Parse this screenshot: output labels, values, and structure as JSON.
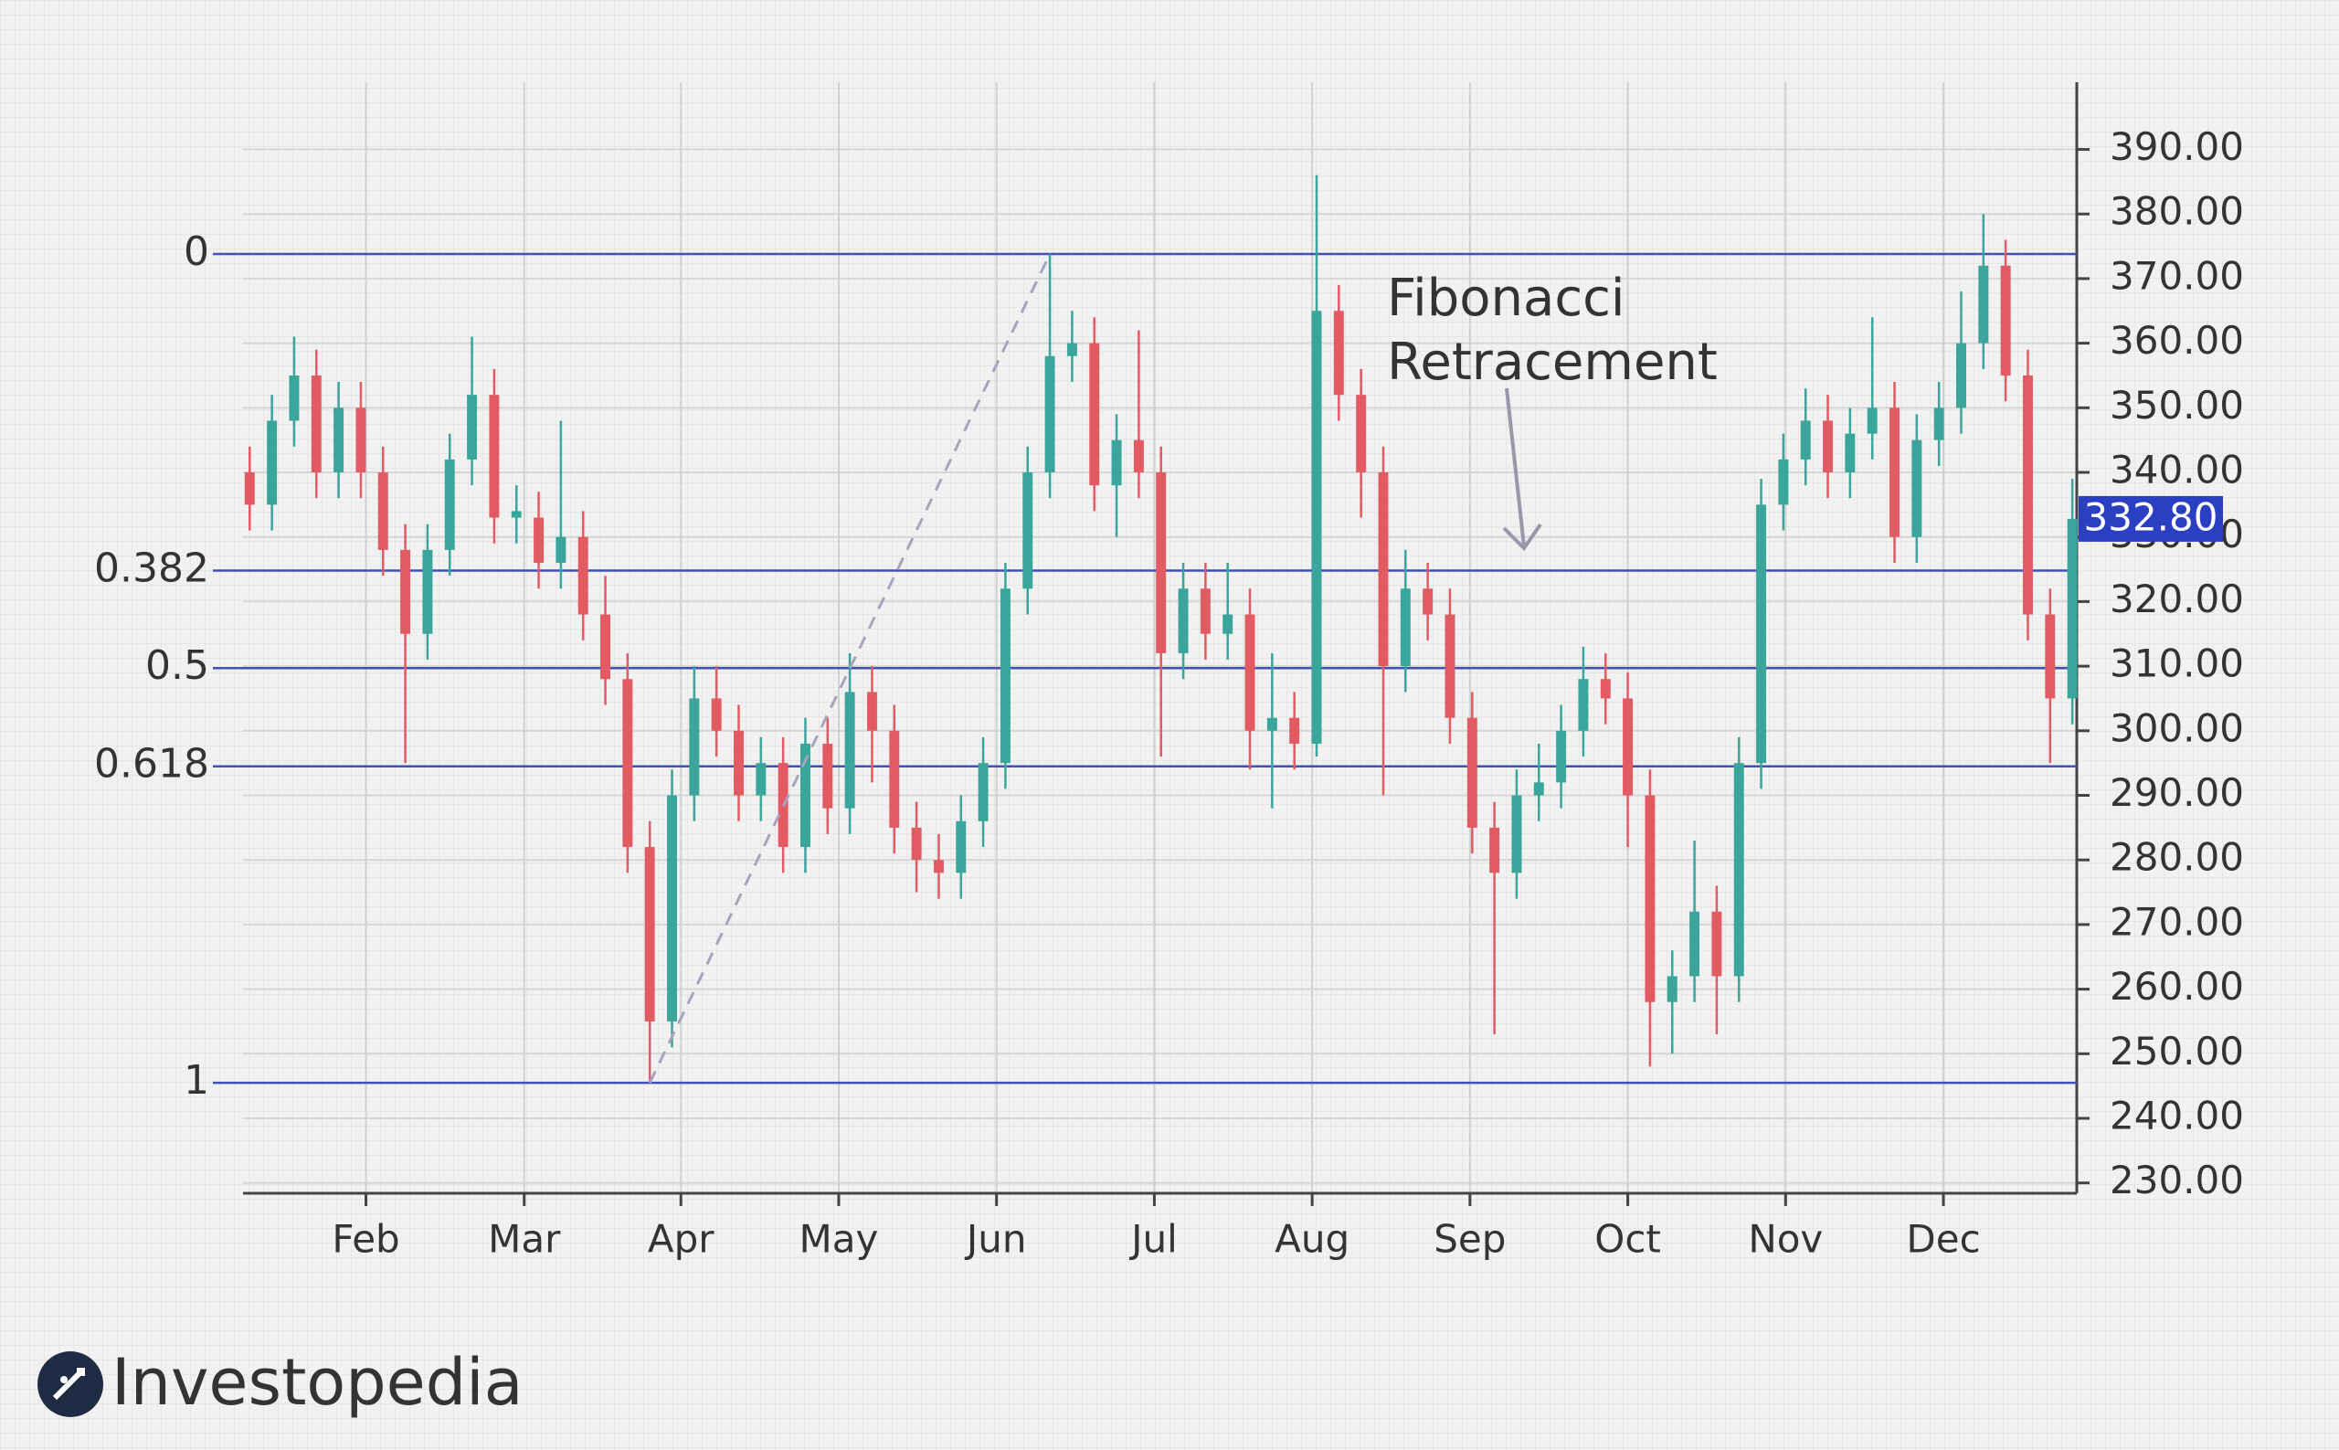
{
  "chart_data": {
    "type": "candlestick",
    "annotation": [
      "Fibonacci",
      "Retracement"
    ],
    "up_color": "#3aa59a",
    "down_color": "#e25a62",
    "fib_color": "#3f51b5",
    "grid": true,
    "xlim": [
      -0.3,
      82.2
    ],
    "xticks": [
      {
        "value": 5.23,
        "label": "Feb"
      },
      {
        "value": 12.35,
        "label": "Mar"
      },
      {
        "value": 19.4,
        "label": "Apr"
      },
      {
        "value": 26.5,
        "label": "May"
      },
      {
        "value": 33.6,
        "label": "Jun"
      },
      {
        "value": 40.7,
        "label": "Jul"
      },
      {
        "value": 47.8,
        "label": "Aug"
      },
      {
        "value": 54.9,
        "label": "Sep"
      },
      {
        "value": 62.0,
        "label": "Oct"
      },
      {
        "value": 69.1,
        "label": "Nov"
      },
      {
        "value": 76.2,
        "label": "Dec"
      }
    ],
    "ylim": [
      228.4,
      400.4
    ],
    "yticks": [
      {
        "value": 230,
        "label": "230.00"
      },
      {
        "value": 240,
        "label": "240.00"
      },
      {
        "value": 250,
        "label": "250.00"
      },
      {
        "value": 260,
        "label": "260.00"
      },
      {
        "value": 270,
        "label": "270.00"
      },
      {
        "value": 280,
        "label": "280.00"
      },
      {
        "value": 290,
        "label": "290.00"
      },
      {
        "value": 300,
        "label": "300.00"
      },
      {
        "value": 310,
        "label": "310.00"
      },
      {
        "value": 320,
        "label": "320.00"
      },
      {
        "value": 330,
        "label": "330.00"
      },
      {
        "value": 340,
        "label": "340.00"
      },
      {
        "value": 350,
        "label": "350.00"
      },
      {
        "value": 360,
        "label": "360.00"
      },
      {
        "value": 370,
        "label": "370.00"
      },
      {
        "value": 380,
        "label": "380.00"
      },
      {
        "value": 390,
        "label": "390.00"
      }
    ],
    "fib_levels": [
      {
        "ratio": 0,
        "price": 373.8
      },
      {
        "ratio": 0.382,
        "price": 324.8
      },
      {
        "ratio": 0.5,
        "price": 309.7
      },
      {
        "ratio": 0.618,
        "price": 294.5
      },
      {
        "ratio": 1,
        "price": 245.5
      }
    ],
    "last_price": {
      "value": 332.8,
      "label": "332.80"
    },
    "open": [
      340,
      335,
      348,
      355,
      340,
      350,
      340,
      328,
      315,
      328,
      342,
      352,
      333,
      333,
      326,
      330,
      318,
      308,
      282,
      255,
      290,
      305,
      300,
      290,
      295,
      282,
      298,
      288,
      306,
      300,
      285,
      280,
      278,
      286,
      295,
      322,
      340,
      358,
      360,
      338,
      345,
      340,
      312,
      322,
      315,
      318,
      300,
      302,
      298,
      365,
      352,
      340,
      310,
      322,
      318,
      302,
      285,
      278,
      290,
      292,
      300,
      308,
      305,
      290,
      258,
      262,
      272,
      262,
      295,
      335,
      342,
      348,
      340,
      346,
      350,
      330,
      345,
      350,
      360,
      372,
      355,
      318,
      305
    ],
    "close": [
      335,
      348,
      355,
      340,
      350,
      340,
      328,
      315,
      328,
      342,
      352,
      333,
      334,
      326,
      330,
      318,
      308,
      282,
      255,
      290,
      305,
      300,
      290,
      295,
      282,
      298,
      288,
      306,
      300,
      285,
      280,
      278,
      286,
      295,
      322,
      340,
      358,
      360,
      338,
      345,
      340,
      312,
      322,
      315,
      318,
      300,
      302,
      298,
      365,
      352,
      340,
      310,
      322,
      318,
      302,
      285,
      278,
      290,
      292,
      300,
      308,
      305,
      290,
      258,
      262,
      272,
      262,
      295,
      335,
      342,
      348,
      340,
      346,
      350,
      330,
      345,
      350,
      360,
      372,
      355,
      318,
      305,
      332.8
    ],
    "high": [
      344,
      352,
      361,
      359,
      354,
      354,
      344,
      332,
      332,
      346,
      361,
      356,
      338,
      337,
      348,
      334,
      324,
      312,
      286,
      294,
      310,
      310,
      304,
      299,
      299,
      302,
      302,
      312,
      310,
      304,
      289,
      284,
      290,
      299,
      326,
      344,
      373.8,
      365,
      364,
      349,
      362,
      344,
      326,
      326,
      326,
      322,
      312,
      306,
      386,
      369,
      356,
      344,
      328,
      326,
      322,
      306,
      289,
      294,
      298,
      304,
      313,
      312,
      309,
      294,
      266,
      283,
      276,
      299,
      339,
      346,
      353,
      352,
      350,
      364,
      354,
      349,
      354,
      368,
      380,
      376,
      359,
      322,
      339
    ],
    "low": [
      331,
      331,
      344,
      336,
      336,
      336,
      324,
      295,
      311,
      324,
      338,
      329,
      329,
      322,
      322,
      314,
      304,
      278,
      245.5,
      251,
      286,
      296,
      286,
      286,
      278,
      278,
      284,
      284,
      292,
      281,
      275,
      274,
      274,
      282,
      291,
      318,
      336,
      354,
      334,
      330,
      336,
      296,
      308,
      311,
      311,
      294,
      288,
      294,
      296,
      348,
      333,
      290,
      306,
      314,
      298,
      281,
      253,
      274,
      286,
      288,
      296,
      301,
      282,
      248,
      250,
      258,
      253,
      258,
      291,
      331,
      338,
      336,
      336,
      342,
      326,
      326,
      341,
      346,
      356,
      351,
      314,
      295,
      301
    ]
  },
  "logo": "Investopedia"
}
